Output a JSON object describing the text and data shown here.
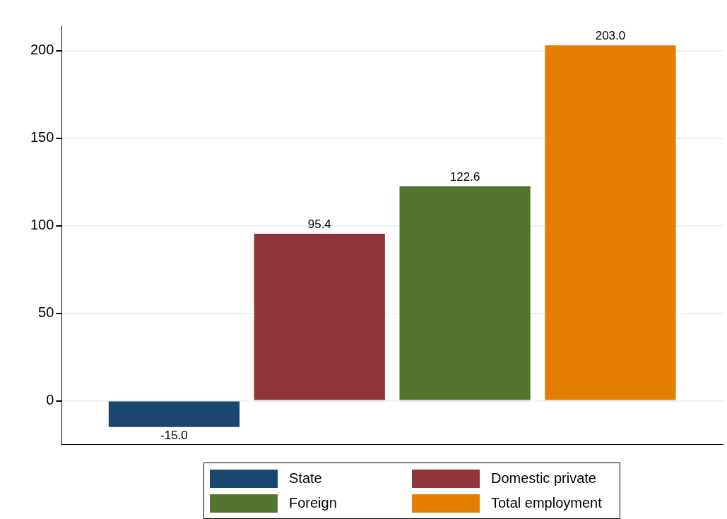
{
  "chart_data": {
    "type": "bar",
    "categories": [
      null
    ],
    "series": [
      {
        "name": "State",
        "color": "#1a476f",
        "values": [
          -15.0
        ],
        "value_labels": [
          "-15.0"
        ]
      },
      {
        "name": "Domestic private",
        "color": "#90353b",
        "values": [
          95.4
        ],
        "value_labels": [
          "95.4"
        ]
      },
      {
        "name": "Foreign",
        "color": "#55752f",
        "values": [
          122.6
        ],
        "value_labels": [
          "122.6"
        ]
      },
      {
        "name": "Total employment",
        "color": "#e37e00",
        "values": [
          203.0
        ],
        "value_labels": [
          "203.0"
        ]
      }
    ],
    "ylim": [
      -25,
      214
    ],
    "yticks": [
      0,
      50,
      100,
      150,
      200
    ],
    "grid": "y",
    "legend": "bottom"
  }
}
